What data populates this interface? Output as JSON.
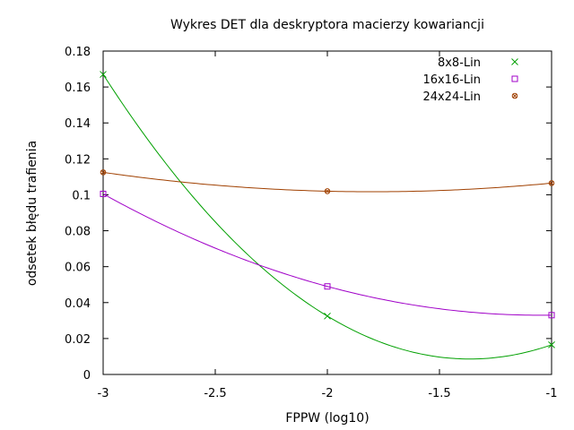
{
  "chart_data": {
    "type": "line",
    "title": "Wykres DET dla deskryptora macierzy kowariancji",
    "xlabel": "FPPW (log10)",
    "ylabel": "odsetek błędu trafienia",
    "xlim": [
      -3,
      -1
    ],
    "ylim": [
      0,
      0.18
    ],
    "xticks": [
      -3,
      -2.5,
      -2,
      -1.5,
      -1
    ],
    "xtick_labels": [
      "-3",
      "-2.5",
      "-2",
      "-1.5",
      "-1"
    ],
    "yticks": [
      0,
      0.02,
      0.04,
      0.06,
      0.08,
      0.1,
      0.12,
      0.14,
      0.16,
      0.18
    ],
    "ytick_labels": [
      "0",
      "0.02",
      "0.04",
      "0.06",
      "0.08",
      "0.1",
      "0.12",
      "0.14",
      "0.16",
      "0.18"
    ],
    "grid": false,
    "legend_position": "top-right",
    "series": [
      {
        "name": "8x8-Lin",
        "color": "#00a000",
        "marker": "cross",
        "x": [
          -3,
          -2,
          -1
        ],
        "y": [
          0.167,
          0.0325,
          0.0165
        ]
      },
      {
        "name": "16x16-Lin",
        "color": "#a000c8",
        "marker": "square",
        "x": [
          -3,
          -2,
          -1
        ],
        "y": [
          0.1005,
          0.049,
          0.033
        ]
      },
      {
        "name": "24x24-Lin",
        "color": "#a04000",
        "marker": "circle-cross",
        "x": [
          -3,
          -2,
          -1
        ],
        "y": [
          0.1125,
          0.102,
          0.1065
        ]
      }
    ]
  }
}
